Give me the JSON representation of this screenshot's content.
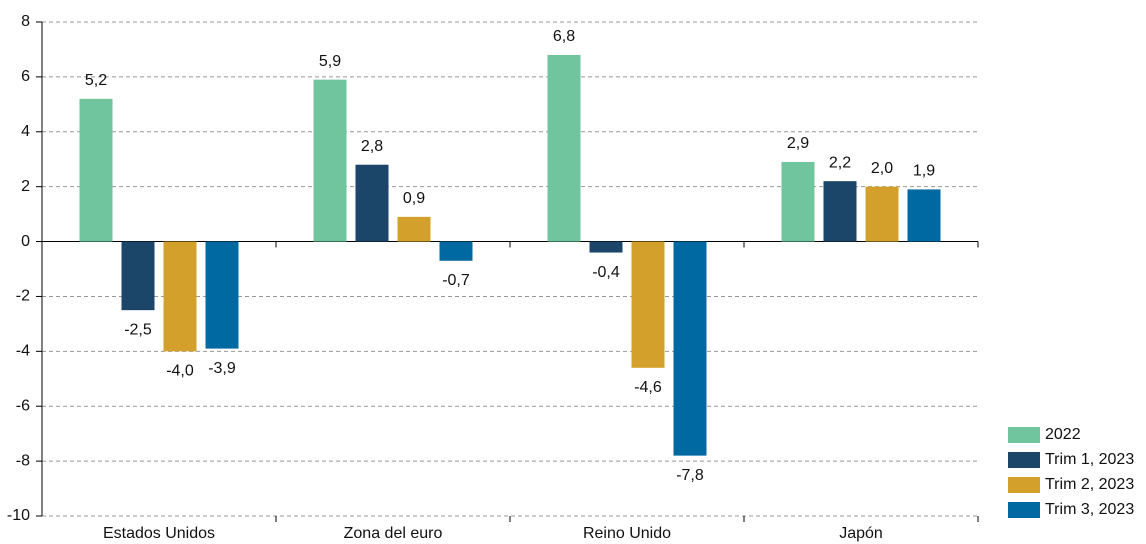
{
  "chart_data": {
    "type": "bar",
    "categories": [
      "Estados Unidos",
      "Zona del euro",
      "Reino Unido",
      "Japón"
    ],
    "series": [
      {
        "name": "2022",
        "color": "#71c59e",
        "values": [
          5.2,
          5.9,
          6.8,
          2.9
        ],
        "value_labels": [
          "5,2",
          "5,9",
          "6,8",
          "2,9"
        ]
      },
      {
        "name": "Trim 1, 2023",
        "color": "#1b466a",
        "values": [
          -2.5,
          2.8,
          -0.4,
          2.2
        ],
        "value_labels": [
          "-2,5",
          "2,8",
          "-0,4",
          "2,2"
        ]
      },
      {
        "name": "Trim 2, 2023",
        "color": "#d3a12b",
        "values": [
          -4.0,
          0.9,
          -4.6,
          2.0
        ],
        "value_labels": [
          "-4,0",
          "0,9",
          "-4,6",
          "2,0"
        ]
      },
      {
        "name": "Trim 3, 2023",
        "color": "#0069a1",
        "values": [
          -3.9,
          -0.7,
          -7.8,
          1.9
        ],
        "value_labels": [
          "-3,9",
          "-0,7",
          "-7,8",
          "1,9"
        ]
      }
    ],
    "ylim": [
      -10,
      8
    ],
    "yticks": [
      -10,
      -8,
      -6,
      -4,
      -2,
      0,
      2,
      4,
      6,
      8
    ],
    "grid": true,
    "legend": "bottom-right"
  }
}
